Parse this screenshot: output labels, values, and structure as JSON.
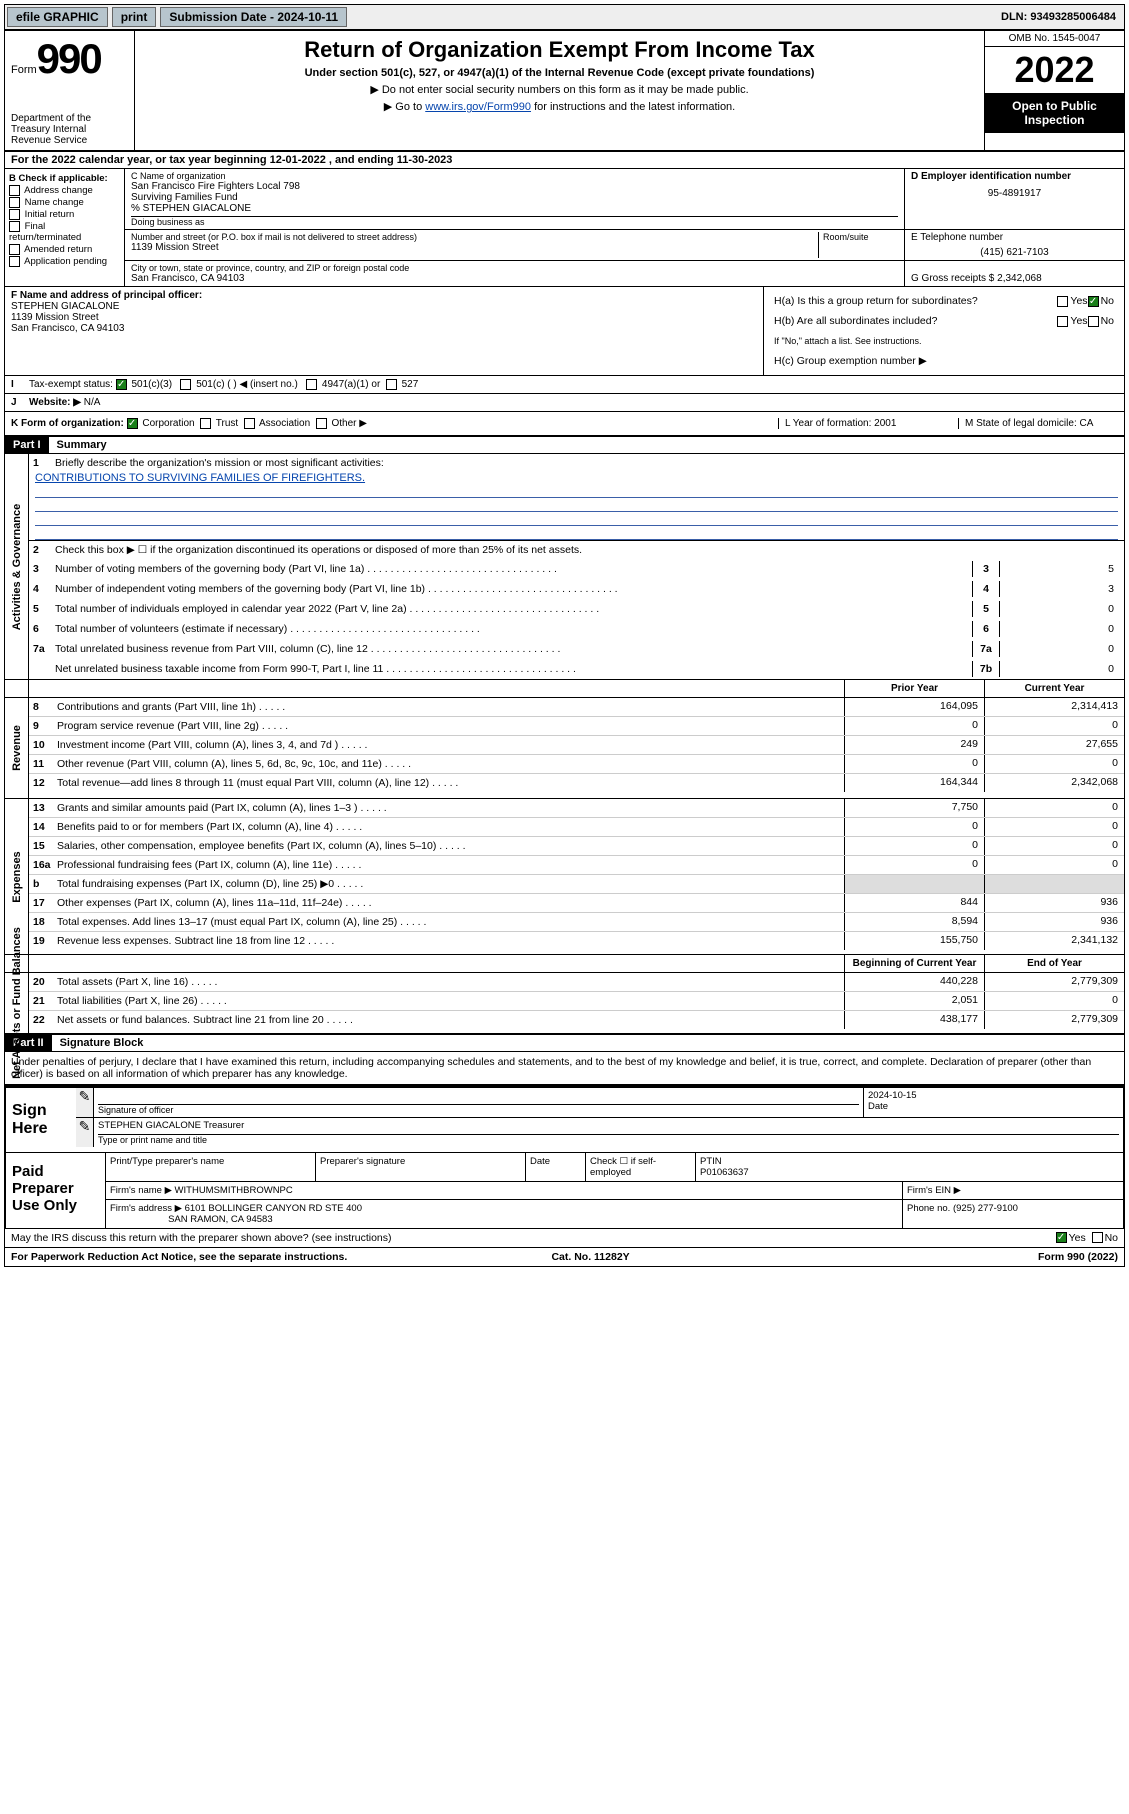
{
  "topbar": {
    "efile_label": "efile GRAPHIC",
    "print_btn": "print",
    "submission_label": "Submission Date - 2024-10-11",
    "dln": "DLN: 93493285006484"
  },
  "header": {
    "form_word": "Form",
    "form_number": "990",
    "dept": "Department of the Treasury Internal Revenue Service",
    "title": "Return of Organization Exempt From Income Tax",
    "sub1": "Under section 501(c), 527, or 4947(a)(1) of the Internal Revenue Code (except private foundations)",
    "sub2": "▶ Do not enter social security numbers on this form as it may be made public.",
    "sub3_pre": "▶ Go to ",
    "sub3_link": "www.irs.gov/Form990",
    "sub3_post": " for instructions and the latest information.",
    "omb": "OMB No. 1545-0047",
    "year": "2022",
    "open": "Open to Public Inspection"
  },
  "taxyear": "For the 2022 calendar year, or tax year beginning 12-01-2022   , and ending 11-30-2023",
  "B": {
    "hdr": "B Check if applicable:",
    "items": [
      "Address change",
      "Name change",
      "Initial return",
      "Final return/terminated",
      "Amended return",
      "Application pending"
    ]
  },
  "C": {
    "name_lbl": "C Name of organization",
    "name1": "San Francisco Fire Fighters Local 798",
    "name2": "Surviving Families Fund",
    "name3": "% STEPHEN GIACALONE",
    "dba_lbl": "Doing business as",
    "addr_lbl": "Number and street (or P.O. box if mail is not delivered to street address)",
    "room_lbl": "Room/suite",
    "addr": "1139 Mission Street",
    "city_lbl": "City or town, state or province, country, and ZIP or foreign postal code",
    "city": "San Francisco, CA  94103"
  },
  "D": {
    "lbl": "D Employer identification number",
    "val": "95-4891917"
  },
  "E": {
    "lbl": "E Telephone number",
    "val": "(415) 621-7103"
  },
  "G": {
    "lbl": "G Gross receipts $",
    "val": "2,342,068"
  },
  "F": {
    "lbl": "F  Name and address of principal officer:",
    "name": "STEPHEN GIACALONE",
    "addr1": "1139 Mission Street",
    "addr2": "San Francisco, CA  94103"
  },
  "H": {
    "a": "H(a)  Is this a group return for subordinates?",
    "a_yes": "Yes",
    "a_no": "No",
    "b": "H(b)  Are all subordinates included?",
    "b_note": "If \"No,\" attach a list. See instructions.",
    "c": "H(c)  Group exemption number ▶"
  },
  "I": {
    "lbl": "Tax-exempt status:",
    "opt1": "501(c)(3)",
    "opt2": "501(c) (   ) ◀ (insert no.)",
    "opt3": "4947(a)(1) or",
    "opt4": "527"
  },
  "J": {
    "lbl": "Website: ▶",
    "val": "N/A"
  },
  "K": {
    "lbl": "K Form of organization:",
    "opts": [
      "Corporation",
      "Trust",
      "Association",
      "Other ▶"
    ]
  },
  "L": {
    "lbl": "L Year of formation:",
    "val": "2001"
  },
  "M": {
    "lbl": "M State of legal domicile:",
    "val": "CA"
  },
  "part1": {
    "hdr": "Part I",
    "title": "Summary"
  },
  "mission": {
    "line1_lbl": "1",
    "line1_txt": "Briefly describe the organization's mission or most significant activities:",
    "text": "CONTRIBUTIONS TO SURVIVING FAMILIES OF FIREFIGHTERS."
  },
  "gov": {
    "l2": "Check this box ▶ ☐  if the organization discontinued its operations or disposed of more than 25% of its net assets.",
    "rows": [
      {
        "n": "3",
        "t": "Number of voting members of the governing body (Part VI, line 1a)",
        "v": "5"
      },
      {
        "n": "4",
        "t": "Number of independent voting members of the governing body (Part VI, line 1b)",
        "v": "3"
      },
      {
        "n": "5",
        "t": "Total number of individuals employed in calendar year 2022 (Part V, line 2a)",
        "v": "0"
      },
      {
        "n": "6",
        "t": "Total number of volunteers (estimate if necessary)",
        "v": "0"
      },
      {
        "n": "7a",
        "t": "Total unrelated business revenue from Part VIII, column (C), line 12",
        "v": "0"
      },
      {
        "n": "",
        "t": "Net unrelated business taxable income from Form 990-T, Part I, line 11",
        "k": "7b",
        "v": "0"
      }
    ]
  },
  "cols": {
    "prior": "Prior Year",
    "current": "Current Year",
    "begin": "Beginning of Current Year",
    "end": "End of Year"
  },
  "revenue": [
    {
      "n": "8",
      "t": "Contributions and grants (Part VIII, line 1h)",
      "p": "164,095",
      "c": "2,314,413"
    },
    {
      "n": "9",
      "t": "Program service revenue (Part VIII, line 2g)",
      "p": "0",
      "c": "0"
    },
    {
      "n": "10",
      "t": "Investment income (Part VIII, column (A), lines 3, 4, and 7d )",
      "p": "249",
      "c": "27,655"
    },
    {
      "n": "11",
      "t": "Other revenue (Part VIII, column (A), lines 5, 6d, 8c, 9c, 10c, and 11e)",
      "p": "0",
      "c": "0"
    },
    {
      "n": "12",
      "t": "Total revenue—add lines 8 through 11 (must equal Part VIII, column (A), line 12)",
      "p": "164,344",
      "c": "2,342,068"
    }
  ],
  "expenses": [
    {
      "n": "13",
      "t": "Grants and similar amounts paid (Part IX, column (A), lines 1–3 )",
      "p": "7,750",
      "c": "0"
    },
    {
      "n": "14",
      "t": "Benefits paid to or for members (Part IX, column (A), line 4)",
      "p": "0",
      "c": "0"
    },
    {
      "n": "15",
      "t": "Salaries, other compensation, employee benefits (Part IX, column (A), lines 5–10)",
      "p": "0",
      "c": "0"
    },
    {
      "n": "16a",
      "t": "Professional fundraising fees (Part IX, column (A), line 11e)",
      "p": "0",
      "c": "0"
    },
    {
      "n": "b",
      "t": "Total fundraising expenses (Part IX, column (D), line 25) ▶0",
      "p": "",
      "c": "",
      "shade": true
    },
    {
      "n": "17",
      "t": "Other expenses (Part IX, column (A), lines 11a–11d, 11f–24e)",
      "p": "844",
      "c": "936"
    },
    {
      "n": "18",
      "t": "Total expenses. Add lines 13–17 (must equal Part IX, column (A), line 25)",
      "p": "8,594",
      "c": "936"
    },
    {
      "n": "19",
      "t": "Revenue less expenses. Subtract line 18 from line 12",
      "p": "155,750",
      "c": "2,341,132"
    }
  ],
  "netassets": [
    {
      "n": "20",
      "t": "Total assets (Part X, line 16)",
      "p": "440,228",
      "c": "2,779,309"
    },
    {
      "n": "21",
      "t": "Total liabilities (Part X, line 26)",
      "p": "2,051",
      "c": "0"
    },
    {
      "n": "22",
      "t": "Net assets or fund balances. Subtract line 21 from line 20",
      "p": "438,177",
      "c": "2,779,309"
    }
  ],
  "part2": {
    "hdr": "Part II",
    "title": "Signature Block"
  },
  "perjury": "Under penalties of perjury, I declare that I have examined this return, including accompanying schedules and statements, and to the best of my knowledge and belief, it is true, correct, and complete. Declaration of preparer (other than officer) is based on all information of which preparer has any knowledge.",
  "sign": {
    "here": "Sign Here",
    "sig_lbl": "Signature of officer",
    "date_lbl": "Date",
    "date_val": "2024-10-15",
    "name": "STEPHEN GIACALONE Treasurer",
    "name_lbl": "Type or print name and title"
  },
  "paid": {
    "lbl": "Paid Preparer Use Only",
    "h1": "Print/Type preparer's name",
    "h2": "Preparer's signature",
    "h3": "Date",
    "h4_pre": "Check ☐ if self-employed",
    "h5": "PTIN",
    "ptin": "P01063637",
    "firm_lbl": "Firm's name    ▶",
    "firm": "WITHUMSMITHBROWNPC",
    "ein_lbl": "Firm's EIN ▶",
    "addr_lbl": "Firm's address ▶",
    "addr1": "6101 BOLLINGER CANYON RD STE 400",
    "addr2": "SAN RAMON, CA  94583",
    "phone_lbl": "Phone no.",
    "phone": "(925) 277-9100"
  },
  "footer": {
    "discuss": "May the IRS discuss this return with the preparer shown above? (see instructions)",
    "yes": "Yes",
    "no": "No",
    "pra": "For Paperwork Reduction Act Notice, see the separate instructions.",
    "cat": "Cat. No. 11282Y",
    "form": "Form 990 (2022)"
  },
  "vlabels": {
    "gov": "Activities & Governance",
    "rev": "Revenue",
    "exp": "Expenses",
    "net": "Net Assets or Fund Balances"
  }
}
